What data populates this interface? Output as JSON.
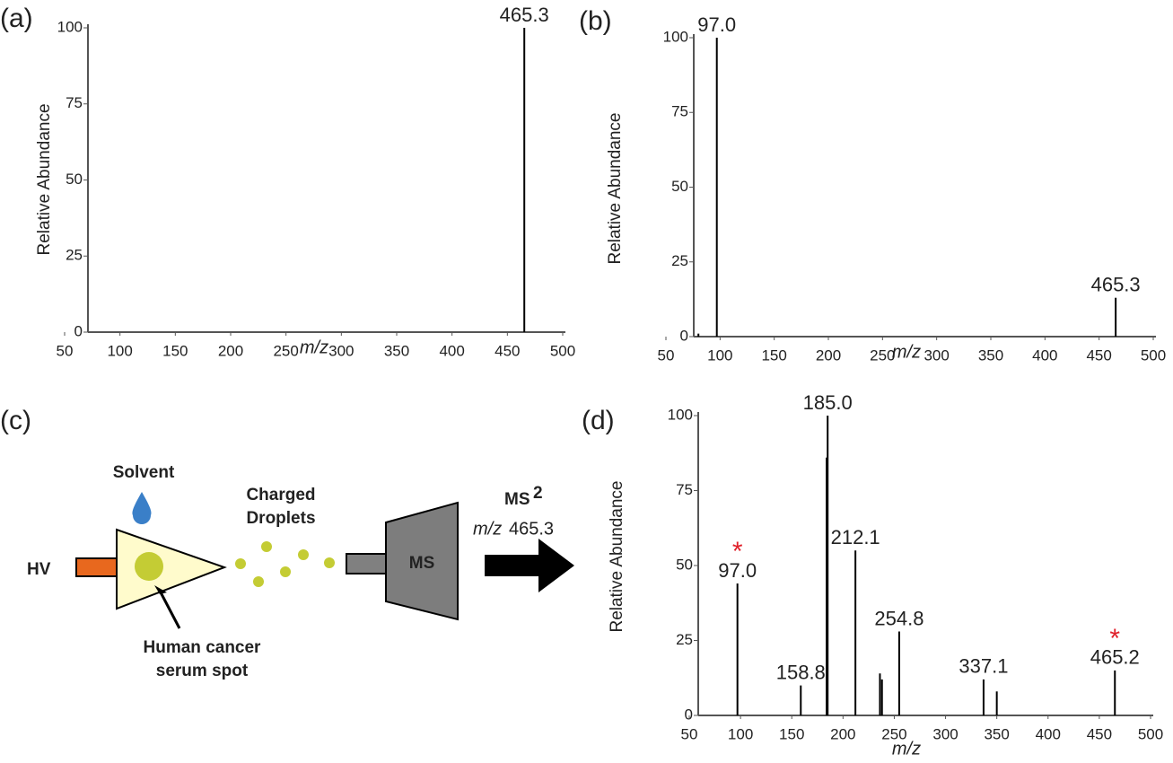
{
  "chart_data": [
    {
      "type": "spectrum",
      "label": "(a)",
      "xlabel": "m/z",
      "ylabel": "Relative Abundance",
      "color": "#000000",
      "x": [
        465.3
      ],
      "values": [
        100
      ],
      "x_labels": [
        "465.3"
      ],
      "xlim": [
        50,
        500
      ],
      "xticks": [
        50,
        100,
        150,
        200,
        250,
        300,
        350,
        400,
        450,
        500
      ],
      "ylim": [
        0,
        100
      ],
      "yticks": [
        0,
        25,
        50,
        75,
        100
      ]
    },
    {
      "type": "spectrum",
      "label": "(b)",
      "xlabel": "m/z",
      "ylabel": "Relative Abundance",
      "color": "#000000",
      "x": [
        80,
        97.0,
        465.3
      ],
      "values": [
        1,
        100,
        13
      ],
      "x_labels": [
        null,
        "97.0",
        "465.3"
      ],
      "xlim": [
        50,
        500
      ],
      "xticks": [
        50,
        100,
        150,
        200,
        250,
        300,
        350,
        400,
        450,
        500
      ],
      "ylim": [
        0,
        100
      ],
      "yticks": [
        0,
        25,
        50,
        75,
        100
      ]
    },
    {
      "type": "spectrum",
      "label": "(d)",
      "xlabel": "m/z",
      "ylabel": "Relative Abundance",
      "color": "#000000",
      "marker_color": "#e0202a",
      "x": [
        97.0,
        158.8,
        184,
        185.0,
        212.1,
        236,
        238,
        254.8,
        337.1,
        350,
        465.2
      ],
      "values": [
        44,
        10,
        86,
        100,
        55,
        14,
        12,
        28,
        12,
        8,
        15
      ],
      "x_labels": [
        "97.0",
        "158.8",
        null,
        "185.0",
        "212.1",
        null,
        null,
        "254.8",
        "337.1",
        null,
        "465.2"
      ],
      "markers": [
        "*",
        null,
        null,
        null,
        null,
        null,
        null,
        null,
        null,
        null,
        "*"
      ],
      "xlim": [
        50,
        500
      ],
      "xticks": [
        50,
        100,
        150,
        200,
        250,
        300,
        350,
        400,
        450,
        500
      ],
      "ylim": [
        0,
        100
      ],
      "yticks": [
        0,
        25,
        50,
        75,
        100
      ]
    }
  ],
  "diagram": {
    "label": "(c)",
    "solvent": "Solvent",
    "droplets": [
      "Charged",
      "Droplets"
    ],
    "hv": "HV",
    "spot": [
      "Human cancer",
      "serum spot"
    ],
    "ms": "MS",
    "step": {
      "ms": "MS",
      "sup": "2",
      "mz": "m/z",
      "value": "465.3"
    }
  }
}
